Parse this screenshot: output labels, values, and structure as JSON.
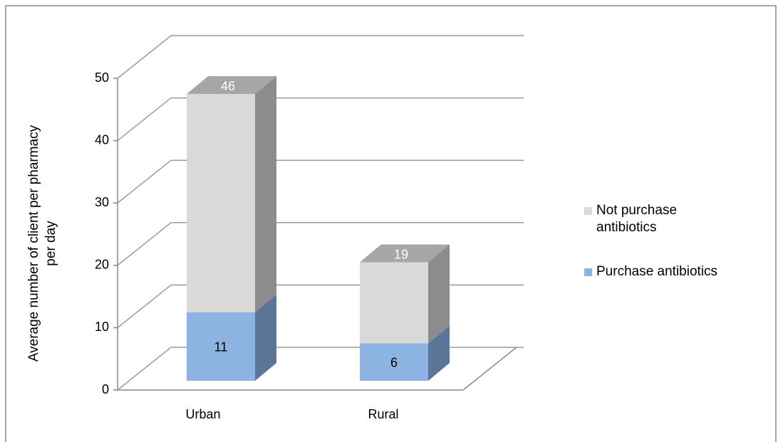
{
  "chart_data": {
    "type": "bar3d_stacked",
    "ylabel": "Average number  of client per pharmacy per day",
    "categories": [
      "Urban",
      "Rural"
    ],
    "series": [
      {
        "name": "Purchase antibiotics",
        "color": "#8db3e2",
        "side_color": "#5b7497",
        "top_color": "#7f9fc8",
        "values": [
          11,
          6
        ],
        "label_color": "#000000"
      },
      {
        "name": "Not purchase antibiotics",
        "color": "#d9d9d9",
        "side_color": "#8c8c8c",
        "top_color": "#a6a6a6",
        "values": [
          35,
          13
        ],
        "label_color": "#ffffff"
      }
    ],
    "totals": [
      46,
      19
    ],
    "ylim": [
      0,
      50
    ],
    "yticks": [
      0,
      10,
      20,
      30,
      40,
      50
    ],
    "grid": true,
    "legend": "right"
  }
}
